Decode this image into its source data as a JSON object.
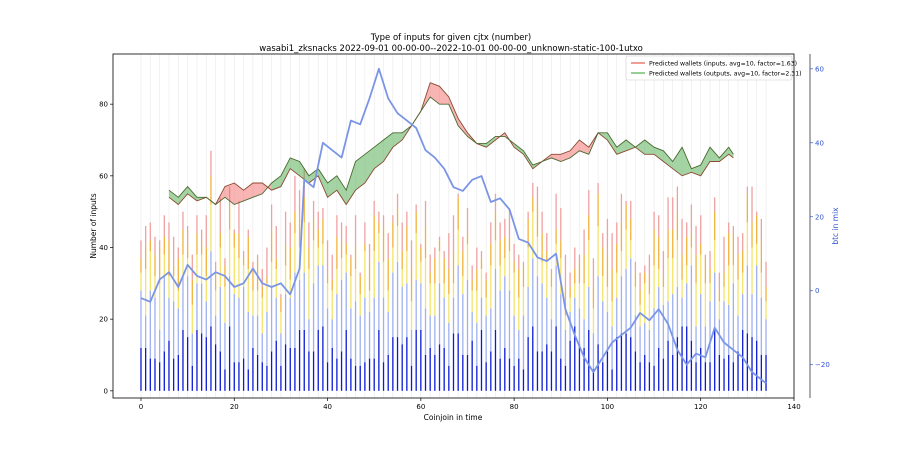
{
  "chart_data": {
    "type": "bar",
    "title": "Type of inputs for given cjtx (number)",
    "subtitle": "wasabi1_zksnacks 2022-09-01 00-00-00--2022-10-01 00-00-00_unknown-static-100-1utxo",
    "xlabel": "Coinjoin in time",
    "ylabel": "Number of inputs",
    "y2label": "btc in mix",
    "xlim": [
      -6,
      140
    ],
    "ylim": [
      -2,
      94
    ],
    "y2lim": [
      -29,
      64
    ],
    "x_ticks": [
      "0",
      "20",
      "40",
      "60",
      "80",
      "100",
      "120",
      "140"
    ],
    "y_ticks": [
      "0",
      "20",
      "40",
      "60",
      "80"
    ],
    "y2_ticks": [
      "−20",
      "0",
      "20",
      "40",
      "60"
    ],
    "legend_position": "top-right",
    "grid": "vertical",
    "legend": [
      {
        "label": "Predicted wallets (inputs, avg=10, factor=1.63)",
        "color": "#e8685e"
      },
      {
        "label": "Predicted wallets (outputs, avg=10, factor=2.31)",
        "color": "#5cb85c"
      }
    ],
    "colors": {
      "fresh_inputs": "#0a1ad6",
      "remix_inputs": "#9fb0f0",
      "mid_inputs": "#f3e36a",
      "upper_inputs": "#f2b23a",
      "top_inputs": "#f0a0a0",
      "btc_line": "#7b95e6",
      "inputs_band": "#f36a6a",
      "outputs_band": "#4aaa4a"
    },
    "btc_in_mix": [
      {
        "x": 0,
        "y": -2
      },
      {
        "x": 2,
        "y": -3
      },
      {
        "x": 4,
        "y": 3
      },
      {
        "x": 6,
        "y": 5
      },
      {
        "x": 8,
        "y": 1
      },
      {
        "x": 10,
        "y": 7
      },
      {
        "x": 12,
        "y": 4
      },
      {
        "x": 14,
        "y": 3
      },
      {
        "x": 16,
        "y": 5
      },
      {
        "x": 18,
        "y": 4
      },
      {
        "x": 20,
        "y": 1
      },
      {
        "x": 22,
        "y": 2
      },
      {
        "x": 24,
        "y": 6
      },
      {
        "x": 26,
        "y": 2
      },
      {
        "x": 28,
        "y": 1
      },
      {
        "x": 30,
        "y": 2
      },
      {
        "x": 32,
        "y": -1
      },
      {
        "x": 34,
        "y": 6
      },
      {
        "x": 35,
        "y": 30
      },
      {
        "x": 37,
        "y": 28
      },
      {
        "x": 39,
        "y": 40
      },
      {
        "x": 41,
        "y": 38
      },
      {
        "x": 43,
        "y": 36
      },
      {
        "x": 45,
        "y": 46
      },
      {
        "x": 47,
        "y": 45
      },
      {
        "x": 49,
        "y": 52
      },
      {
        "x": 51,
        "y": 60
      },
      {
        "x": 53,
        "y": 52
      },
      {
        "x": 55,
        "y": 48
      },
      {
        "x": 57,
        "y": 46
      },
      {
        "x": 59,
        "y": 44
      },
      {
        "x": 61,
        "y": 38
      },
      {
        "x": 63,
        "y": 36
      },
      {
        "x": 65,
        "y": 33
      },
      {
        "x": 67,
        "y": 28
      },
      {
        "x": 69,
        "y": 27
      },
      {
        "x": 71,
        "y": 30
      },
      {
        "x": 73,
        "y": 31
      },
      {
        "x": 75,
        "y": 24
      },
      {
        "x": 77,
        "y": 25
      },
      {
        "x": 79,
        "y": 22
      },
      {
        "x": 81,
        "y": 14
      },
      {
        "x": 83,
        "y": 13
      },
      {
        "x": 85,
        "y": 9
      },
      {
        "x": 87,
        "y": 8
      },
      {
        "x": 89,
        "y": 10
      },
      {
        "x": 91,
        "y": -5
      },
      {
        "x": 93,
        "y": -12
      },
      {
        "x": 95,
        "y": -18
      },
      {
        "x": 97,
        "y": -22
      },
      {
        "x": 99,
        "y": -18
      },
      {
        "x": 101,
        "y": -14
      },
      {
        "x": 103,
        "y": -12
      },
      {
        "x": 105,
        "y": -10
      },
      {
        "x": 107,
        "y": -6
      },
      {
        "x": 109,
        "y": -8
      },
      {
        "x": 111,
        "y": -5
      },
      {
        "x": 113,
        "y": -9
      },
      {
        "x": 115,
        "y": -16
      },
      {
        "x": 117,
        "y": -20
      },
      {
        "x": 119,
        "y": -17
      },
      {
        "x": 121,
        "y": -18
      },
      {
        "x": 123,
        "y": -10
      },
      {
        "x": 125,
        "y": -14
      },
      {
        "x": 127,
        "y": -16
      },
      {
        "x": 129,
        "y": -18
      },
      {
        "x": 131,
        "y": -22
      },
      {
        "x": 133,
        "y": -24
      },
      {
        "x": 134,
        "y": -25
      }
    ],
    "predicted_wallets_inputs": [
      {
        "x": 6,
        "y": 54
      },
      {
        "x": 8,
        "y": 52
      },
      {
        "x": 10,
        "y": 55
      },
      {
        "x": 12,
        "y": 53
      },
      {
        "x": 14,
        "y": 54
      },
      {
        "x": 16,
        "y": 52
      },
      {
        "x": 18,
        "y": 57
      },
      {
        "x": 20,
        "y": 58
      },
      {
        "x": 22,
        "y": 56
      },
      {
        "x": 24,
        "y": 58
      },
      {
        "x": 26,
        "y": 58
      },
      {
        "x": 28,
        "y": 56
      },
      {
        "x": 30,
        "y": 57
      },
      {
        "x": 32,
        "y": 62
      },
      {
        "x": 34,
        "y": 60
      },
      {
        "x": 36,
        "y": 58
      },
      {
        "x": 38,
        "y": 60
      },
      {
        "x": 40,
        "y": 54
      },
      {
        "x": 42,
        "y": 56
      },
      {
        "x": 44,
        "y": 52
      },
      {
        "x": 46,
        "y": 56
      },
      {
        "x": 48,
        "y": 58
      },
      {
        "x": 50,
        "y": 62
      },
      {
        "x": 52,
        "y": 64
      },
      {
        "x": 54,
        "y": 68
      },
      {
        "x": 56,
        "y": 70
      },
      {
        "x": 58,
        "y": 74
      },
      {
        "x": 60,
        "y": 78
      },
      {
        "x": 62,
        "y": 86
      },
      {
        "x": 64,
        "y": 85
      },
      {
        "x": 66,
        "y": 82
      },
      {
        "x": 68,
        "y": 76
      },
      {
        "x": 70,
        "y": 72
      },
      {
        "x": 72,
        "y": 69
      },
      {
        "x": 74,
        "y": 68
      },
      {
        "x": 76,
        "y": 70
      },
      {
        "x": 78,
        "y": 72
      },
      {
        "x": 80,
        "y": 68
      },
      {
        "x": 82,
        "y": 66
      },
      {
        "x": 84,
        "y": 62
      },
      {
        "x": 86,
        "y": 64
      },
      {
        "x": 88,
        "y": 66
      },
      {
        "x": 90,
        "y": 66
      },
      {
        "x": 92,
        "y": 67
      },
      {
        "x": 94,
        "y": 70
      },
      {
        "x": 96,
        "y": 68
      },
      {
        "x": 98,
        "y": 72
      },
      {
        "x": 100,
        "y": 70
      },
      {
        "x": 102,
        "y": 66
      },
      {
        "x": 104,
        "y": 67
      },
      {
        "x": 106,
        "y": 68
      },
      {
        "x": 108,
        "y": 66
      },
      {
        "x": 110,
        "y": 66
      },
      {
        "x": 112,
        "y": 64
      },
      {
        "x": 114,
        "y": 62
      },
      {
        "x": 116,
        "y": 60
      },
      {
        "x": 118,
        "y": 61
      },
      {
        "x": 120,
        "y": 60
      },
      {
        "x": 122,
        "y": 64
      },
      {
        "x": 124,
        "y": 64
      },
      {
        "x": 126,
        "y": 66
      },
      {
        "x": 127,
        "y": 65
      }
    ],
    "predicted_wallets_outputs": [
      {
        "x": 6,
        "y": 56
      },
      {
        "x": 8,
        "y": 54
      },
      {
        "x": 10,
        "y": 57
      },
      {
        "x": 12,
        "y": 54
      },
      {
        "x": 14,
        "y": 54
      },
      {
        "x": 16,
        "y": 52
      },
      {
        "x": 18,
        "y": 54
      },
      {
        "x": 20,
        "y": 52
      },
      {
        "x": 22,
        "y": 53
      },
      {
        "x": 24,
        "y": 54
      },
      {
        "x": 26,
        "y": 55
      },
      {
        "x": 28,
        "y": 58
      },
      {
        "x": 30,
        "y": 60
      },
      {
        "x": 32,
        "y": 65
      },
      {
        "x": 34,
        "y": 64
      },
      {
        "x": 36,
        "y": 60
      },
      {
        "x": 38,
        "y": 62
      },
      {
        "x": 40,
        "y": 58
      },
      {
        "x": 42,
        "y": 60
      },
      {
        "x": 44,
        "y": 56
      },
      {
        "x": 46,
        "y": 64
      },
      {
        "x": 48,
        "y": 66
      },
      {
        "x": 50,
        "y": 68
      },
      {
        "x": 52,
        "y": 70
      },
      {
        "x": 54,
        "y": 72
      },
      {
        "x": 56,
        "y": 72
      },
      {
        "x": 58,
        "y": 74
      },
      {
        "x": 60,
        "y": 78
      },
      {
        "x": 62,
        "y": 82
      },
      {
        "x": 64,
        "y": 80
      },
      {
        "x": 66,
        "y": 80
      },
      {
        "x": 68,
        "y": 74
      },
      {
        "x": 70,
        "y": 71
      },
      {
        "x": 72,
        "y": 69
      },
      {
        "x": 74,
        "y": 69
      },
      {
        "x": 76,
        "y": 71
      },
      {
        "x": 78,
        "y": 71
      },
      {
        "x": 80,
        "y": 69
      },
      {
        "x": 82,
        "y": 67
      },
      {
        "x": 84,
        "y": 63
      },
      {
        "x": 86,
        "y": 64
      },
      {
        "x": 88,
        "y": 65
      },
      {
        "x": 90,
        "y": 64
      },
      {
        "x": 92,
        "y": 65
      },
      {
        "x": 94,
        "y": 67
      },
      {
        "x": 96,
        "y": 66
      },
      {
        "x": 98,
        "y": 72
      },
      {
        "x": 100,
        "y": 72
      },
      {
        "x": 102,
        "y": 68
      },
      {
        "x": 104,
        "y": 70
      },
      {
        "x": 106,
        "y": 68
      },
      {
        "x": 108,
        "y": 70
      },
      {
        "x": 110,
        "y": 68
      },
      {
        "x": 112,
        "y": 67
      },
      {
        "x": 114,
        "y": 64
      },
      {
        "x": 116,
        "y": 68
      },
      {
        "x": 118,
        "y": 62
      },
      {
        "x": 120,
        "y": 63
      },
      {
        "x": 122,
        "y": 68
      },
      {
        "x": 124,
        "y": 65
      },
      {
        "x": 126,
        "y": 68
      },
      {
        "x": 127,
        "y": 66
      }
    ]
  }
}
